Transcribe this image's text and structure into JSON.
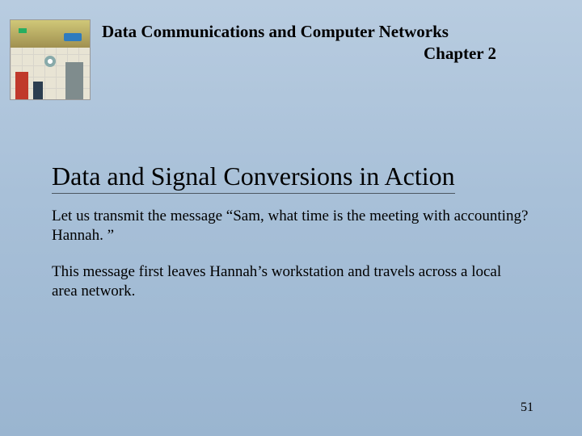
{
  "header": {
    "course_title": "Data Communications and Computer Networks",
    "chapter": "Chapter 2"
  },
  "content": {
    "section_title": "Data and Signal Conversions in Action",
    "paragraph1": "Let us transmit the message “Sam, what time is the meeting with accounting?  Hannah. ”",
    "paragraph2": "This message first leaves Hannah’s workstation and travels across a local area network."
  },
  "page_number": "51",
  "style": {
    "bg_gradient_top": "#b8cce0",
    "bg_gradient_bottom": "#9ab5d0",
    "title_fontsize_pt": 24,
    "body_fontsize_pt": 14,
    "header_fontsize_pt": 16,
    "font_family": "Times New Roman",
    "text_color": "#000000"
  }
}
